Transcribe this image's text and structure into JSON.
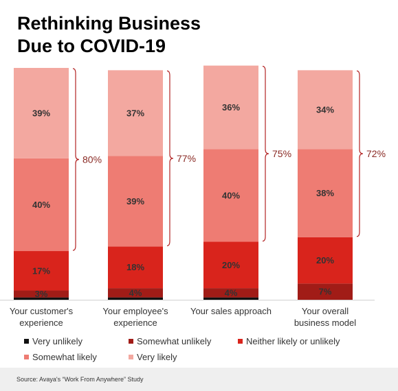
{
  "title_lines": [
    "Rethinking Business",
    "Due to COVID-19"
  ],
  "source": "Source: Avaya's “Work From Anywhere” Study",
  "colors": {
    "very_unlikely": "#111111",
    "somewhat_unlikely": "#a11c17",
    "neither": "#d9241c",
    "somewhat_likely": "#ee7c73",
    "very_likely": "#f3a8a0",
    "bracket": "#b22222",
    "label_text": "#333333",
    "bracket_text": "#8a2a24"
  },
  "chart_data": {
    "type": "bar",
    "stacked": true,
    "categories": [
      [
        "Your customer's",
        "experience"
      ],
      [
        "Your employee's",
        "experience"
      ],
      [
        "Your sales approach"
      ],
      [
        "Your overall",
        "business model"
      ]
    ],
    "series": [
      {
        "name": "Very unlikely",
        "color_key": "very_unlikely",
        "values": [
          1,
          1,
          1,
          0
        ],
        "labels": [
          "",
          "",
          "",
          ""
        ]
      },
      {
        "name": "Somewhat unlikely",
        "color_key": "somewhat_unlikely",
        "values": [
          3,
          4,
          4,
          7
        ],
        "labels": [
          "3%",
          "4%",
          "4%",
          "7%"
        ]
      },
      {
        "name": "Neither likely or unlikely",
        "color_key": "neither",
        "values": [
          17,
          18,
          20,
          20
        ],
        "labels": [
          "17%",
          "18%",
          "20%",
          "20%"
        ]
      },
      {
        "name": "Somewhat likely",
        "color_key": "somewhat_likely",
        "values": [
          40,
          39,
          40,
          38
        ],
        "labels": [
          "40%",
          "39%",
          "40%",
          "38%"
        ]
      },
      {
        "name": "Very likely",
        "color_key": "very_likely",
        "values": [
          39,
          37,
          36,
          34
        ],
        "labels": [
          "39%",
          "37%",
          "36%",
          "34%"
        ]
      }
    ],
    "bracket_totals": [
      "80%",
      "77%",
      "75%",
      "72%"
    ],
    "legend_placement": "bottom",
    "ylim": [
      0,
      100
    ]
  }
}
